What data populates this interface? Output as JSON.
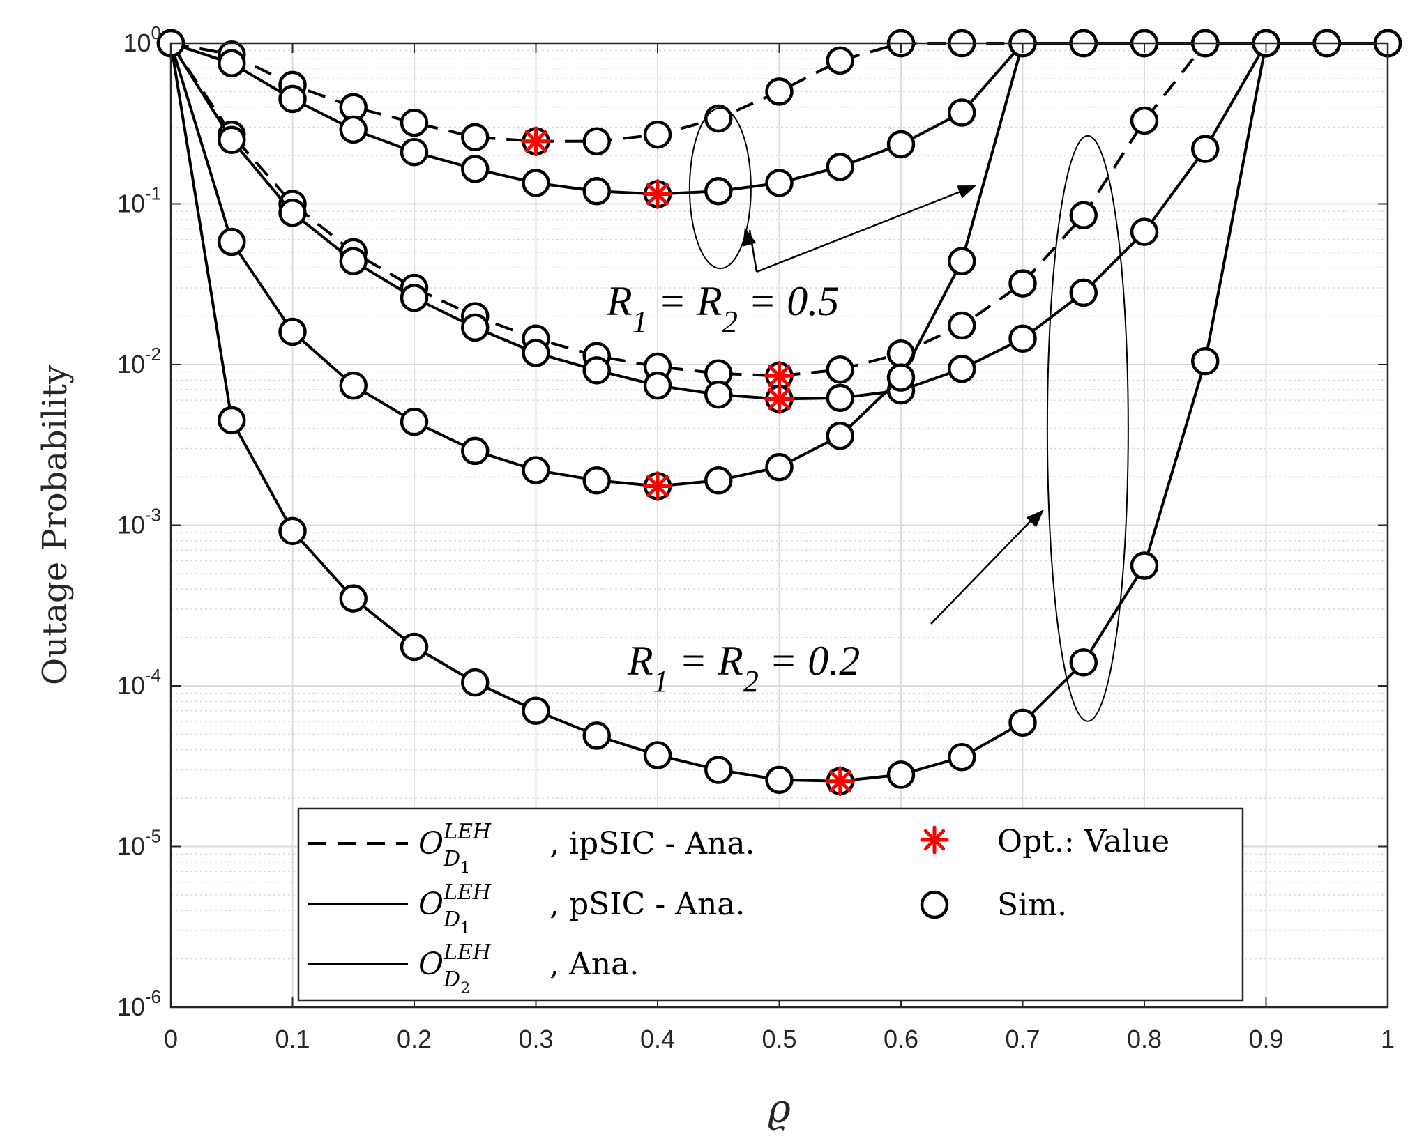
{
  "chart_data": {
    "type": "line",
    "xlabel": "ϱ",
    "ylabel": "Outage Probability",
    "xlim": [
      0,
      1
    ],
    "ylim": [
      1e-06,
      1
    ],
    "yscale": "log",
    "grid": true,
    "x_ticks": [
      "0",
      "0.1",
      "0.2",
      "0.3",
      "0.4",
      "0.5",
      "0.6",
      "0.7",
      "0.8",
      "0.9",
      "1"
    ],
    "y_ticks": [
      {
        "base": "10",
        "exp": "0"
      },
      {
        "base": "10",
        "exp": "-1"
      },
      {
        "base": "10",
        "exp": "-2"
      },
      {
        "base": "10",
        "exp": "-3"
      },
      {
        "base": "10",
        "exp": "-4"
      },
      {
        "base": "10",
        "exp": "-5"
      },
      {
        "base": "10",
        "exp": "-6"
      }
    ],
    "legend_position": "bottom",
    "series": [
      {
        "name": "D1 ipSIC R=0.5",
        "group": "R1 = R2 = 0.5",
        "style": "dashed",
        "x": [
          0,
          0.05,
          0.1,
          0.15,
          0.2,
          0.25,
          0.3,
          0.35,
          0.4,
          0.45,
          0.5,
          0.55,
          0.6,
          0.65,
          0.7,
          0.75,
          0.8,
          0.85,
          0.9,
          0.95,
          1
        ],
        "y": [
          1,
          0.85,
          0.55,
          0.4,
          0.32,
          0.26,
          0.245,
          0.245,
          0.27,
          0.34,
          0.5,
          0.78,
          1,
          1,
          1,
          1,
          1,
          1,
          1,
          1,
          1
        ],
        "opt": {
          "x": 0.3,
          "y": 0.245
        }
      },
      {
        "name": "D1 pSIC R=0.5",
        "group": "R1 = R2 = 0.5",
        "style": "solid",
        "x": [
          0,
          0.05,
          0.1,
          0.15,
          0.2,
          0.25,
          0.3,
          0.35,
          0.4,
          0.45,
          0.5,
          0.55,
          0.6,
          0.65,
          0.7,
          0.75,
          0.8,
          0.85,
          0.9,
          0.95,
          1
        ],
        "y": [
          1,
          0.75,
          0.45,
          0.29,
          0.21,
          0.165,
          0.135,
          0.12,
          0.115,
          0.12,
          0.135,
          0.17,
          0.235,
          0.37,
          1,
          1,
          1,
          1,
          1,
          1,
          1
        ],
        "opt": {
          "x": 0.4,
          "y": 0.115
        }
      },
      {
        "name": "D1 ipSIC R=0.2",
        "group": "R1 = R2 = 0.2",
        "style": "dashed",
        "x": [
          0,
          0.05,
          0.1,
          0.15,
          0.2,
          0.25,
          0.3,
          0.35,
          0.4,
          0.45,
          0.5,
          0.55,
          0.6,
          0.65,
          0.7,
          0.75,
          0.8,
          0.85,
          0.9,
          0.95,
          1
        ],
        "y": [
          1,
          0.27,
          0.1,
          0.05,
          0.03,
          0.02,
          0.0145,
          0.0113,
          0.0097,
          0.0088,
          0.0085,
          0.0093,
          0.0117,
          0.0175,
          0.032,
          0.085,
          0.33,
          1,
          1,
          1,
          1
        ],
        "opt": {
          "x": 0.5,
          "y": 0.0085
        }
      },
      {
        "name": "D1 pSIC R=0.2",
        "group": "R1 = R2 = 0.2",
        "style": "solid",
        "x": [
          0,
          0.05,
          0.1,
          0.15,
          0.2,
          0.25,
          0.3,
          0.35,
          0.4,
          0.45,
          0.5,
          0.55,
          0.6,
          0.65,
          0.7,
          0.75,
          0.8,
          0.85,
          0.9,
          0.95,
          1
        ],
        "y": [
          1,
          0.25,
          0.088,
          0.044,
          0.026,
          0.017,
          0.0118,
          0.0092,
          0.0074,
          0.0065,
          0.0061,
          0.0062,
          0.0069,
          0.0094,
          0.0145,
          0.028,
          0.067,
          0.22,
          1,
          1,
          1
        ],
        "opt": {
          "x": 0.5,
          "y": 0.0061
        }
      },
      {
        "name": "D2 R=0.5",
        "group": "R1 = R2 = 0.5",
        "style": "solid",
        "x": [
          0,
          0.05,
          0.1,
          0.15,
          0.2,
          0.25,
          0.3,
          0.35,
          0.4,
          0.45,
          0.5,
          0.55,
          0.6,
          0.65,
          0.7,
          0.75,
          0.8,
          0.85,
          0.9,
          0.95,
          1
        ],
        "y": [
          1,
          0.058,
          0.016,
          0.0074,
          0.0044,
          0.0029,
          0.0022,
          0.0019,
          0.00175,
          0.0019,
          0.0023,
          0.0036,
          0.0083,
          0.044,
          1,
          1,
          1,
          1,
          1,
          1,
          1
        ],
        "opt": {
          "x": 0.4,
          "y": 0.00175
        }
      },
      {
        "name": "D2 R=0.2",
        "group": "R1 = R2 = 0.2",
        "style": "solid",
        "x": [
          0,
          0.05,
          0.1,
          0.15,
          0.2,
          0.25,
          0.3,
          0.35,
          0.4,
          0.45,
          0.5,
          0.55,
          0.6,
          0.65,
          0.7,
          0.75,
          0.8,
          0.85,
          0.9,
          0.95,
          1
        ],
        "y": [
          1,
          0.0045,
          0.00092,
          0.00035,
          0.000175,
          0.000105,
          7e-05,
          4.9e-05,
          3.7e-05,
          3e-05,
          2.6e-05,
          2.55e-05,
          2.8e-05,
          3.6e-05,
          5.9e-05,
          0.00014,
          0.00056,
          0.0105,
          1,
          1,
          1
        ],
        "opt": {
          "x": 0.55,
          "y": 2.55e-05
        }
      }
    ],
    "annotations": [
      {
        "id": "r05",
        "main": "R",
        "s1": "1",
        "eq1": " = ",
        "main2": "R",
        "s2": "2",
        "eq2": " = 0.5",
        "target_x": 0.455,
        "target_y": 0.12
      },
      {
        "id": "r02",
        "main": "R",
        "s1": "1",
        "eq1": " = ",
        "main2": "R",
        "s2": "2",
        "eq2": " = 0.2",
        "target_x": 0.75,
        "target_y": 0.0017
      }
    ],
    "legend": {
      "items": [
        {
          "sym": "O",
          "sup": "LEH",
          "sub": "D",
          "subsub": "1",
          "text": ", ipSIC - Ana.",
          "style": "dashed"
        },
        {
          "sym": "O",
          "sup": "LEH",
          "sub": "D",
          "subsub": "1",
          "text": ", pSIC - Ana.",
          "style": "solid"
        },
        {
          "sym": "O",
          "sup": "LEH",
          "sub": "D",
          "subsub": "2",
          "text": ", Ana.",
          "style": "solid"
        },
        {
          "text": "Opt.: Value",
          "style": "star"
        },
        {
          "text": "Sim.",
          "style": "circle"
        }
      ]
    },
    "colors": {
      "line": "#000000",
      "marker_face": "#ffffff",
      "opt": "#ff0000",
      "grid": "#dcdcdc",
      "axes": "#262626"
    }
  }
}
